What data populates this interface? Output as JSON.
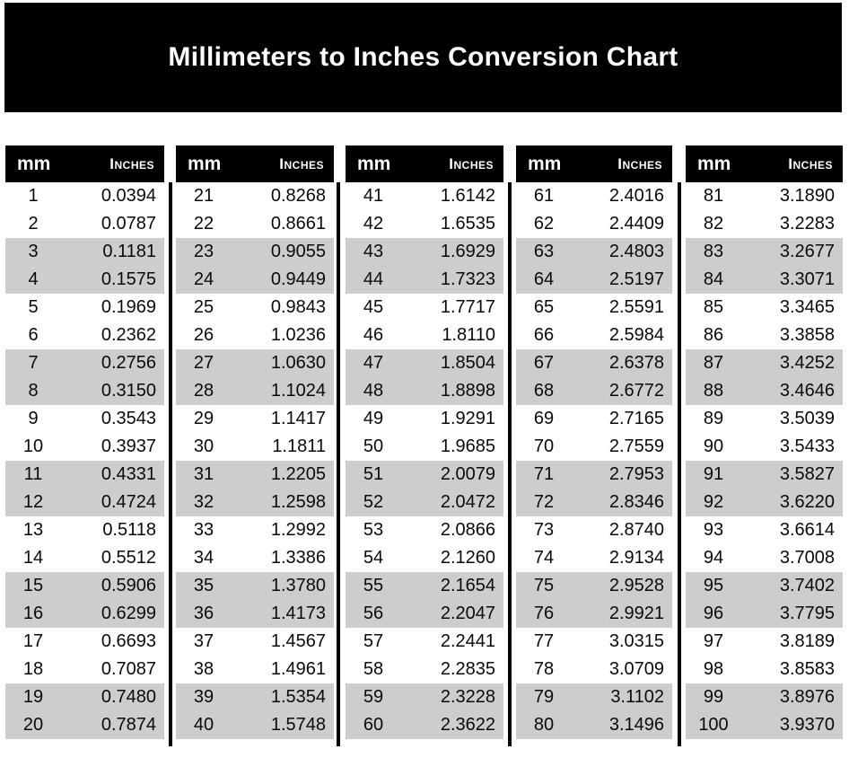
{
  "colors": {
    "banner_bg": "#000000",
    "header_bg": "#000000",
    "header_text": "#ffffff",
    "stripe": "#cdcdcd",
    "divider": "#000000",
    "text": "#0a0a0a"
  },
  "chart_data": {
    "type": "table",
    "title": "Millimeters to Inches Conversion Chart",
    "column_headers": [
      "mm",
      "Inches"
    ],
    "stripe_pattern": "rows 3-4 of every 4 shaded",
    "groups": [
      [
        [
          "1",
          "0.0394"
        ],
        [
          "2",
          "0.0787"
        ],
        [
          "3",
          "0.1181"
        ],
        [
          "4",
          "0.1575"
        ],
        [
          "5",
          "0.1969"
        ],
        [
          "6",
          "0.2362"
        ],
        [
          "7",
          "0.2756"
        ],
        [
          "8",
          "0.3150"
        ],
        [
          "9",
          "0.3543"
        ],
        [
          "10",
          "0.3937"
        ],
        [
          "11",
          "0.4331"
        ],
        [
          "12",
          "0.4724"
        ],
        [
          "13",
          "0.5118"
        ],
        [
          "14",
          "0.5512"
        ],
        [
          "15",
          "0.5906"
        ],
        [
          "16",
          "0.6299"
        ],
        [
          "17",
          "0.6693"
        ],
        [
          "18",
          "0.7087"
        ],
        [
          "19",
          "0.7480"
        ],
        [
          "20",
          "0.7874"
        ]
      ],
      [
        [
          "21",
          "0.8268"
        ],
        [
          "22",
          "0.8661"
        ],
        [
          "23",
          "0.9055"
        ],
        [
          "24",
          "0.9449"
        ],
        [
          "25",
          "0.9843"
        ],
        [
          "26",
          "1.0236"
        ],
        [
          "27",
          "1.0630"
        ],
        [
          "28",
          "1.1024"
        ],
        [
          "29",
          "1.1417"
        ],
        [
          "30",
          "1.1811"
        ],
        [
          "31",
          "1.2205"
        ],
        [
          "32",
          "1.2598"
        ],
        [
          "33",
          "1.2992"
        ],
        [
          "34",
          "1.3386"
        ],
        [
          "35",
          "1.3780"
        ],
        [
          "36",
          "1.4173"
        ],
        [
          "37",
          "1.4567"
        ],
        [
          "38",
          "1.4961"
        ],
        [
          "39",
          "1.5354"
        ],
        [
          "40",
          "1.5748"
        ]
      ],
      [
        [
          "41",
          "1.6142"
        ],
        [
          "42",
          "1.6535"
        ],
        [
          "43",
          "1.6929"
        ],
        [
          "44",
          "1.7323"
        ],
        [
          "45",
          "1.7717"
        ],
        [
          "46",
          "1.8110"
        ],
        [
          "47",
          "1.8504"
        ],
        [
          "48",
          "1.8898"
        ],
        [
          "49",
          "1.9291"
        ],
        [
          "50",
          "1.9685"
        ],
        [
          "51",
          "2.0079"
        ],
        [
          "52",
          "2.0472"
        ],
        [
          "53",
          "2.0866"
        ],
        [
          "54",
          "2.1260"
        ],
        [
          "55",
          "2.1654"
        ],
        [
          "56",
          "2.2047"
        ],
        [
          "57",
          "2.2441"
        ],
        [
          "58",
          "2.2835"
        ],
        [
          "59",
          "2.3228"
        ],
        [
          "60",
          "2.3622"
        ]
      ],
      [
        [
          "61",
          "2.4016"
        ],
        [
          "62",
          "2.4409"
        ],
        [
          "63",
          "2.4803"
        ],
        [
          "64",
          "2.5197"
        ],
        [
          "65",
          "2.5591"
        ],
        [
          "66",
          "2.5984"
        ],
        [
          "67",
          "2.6378"
        ],
        [
          "68",
          "2.6772"
        ],
        [
          "69",
          "2.7165"
        ],
        [
          "70",
          "2.7559"
        ],
        [
          "71",
          "2.7953"
        ],
        [
          "72",
          "2.8346"
        ],
        [
          "73",
          "2.8740"
        ],
        [
          "74",
          "2.9134"
        ],
        [
          "75",
          "2.9528"
        ],
        [
          "76",
          "2.9921"
        ],
        [
          "77",
          "3.0315"
        ],
        [
          "78",
          "3.0709"
        ],
        [
          "79",
          "3.1102"
        ],
        [
          "80",
          "3.1496"
        ]
      ],
      [
        [
          "81",
          "3.1890"
        ],
        [
          "82",
          "3.2283"
        ],
        [
          "83",
          "3.2677"
        ],
        [
          "84",
          "3.3071"
        ],
        [
          "85",
          "3.3465"
        ],
        [
          "86",
          "3.3858"
        ],
        [
          "87",
          "3.4252"
        ],
        [
          "88",
          "3.4646"
        ],
        [
          "89",
          "3.5039"
        ],
        [
          "90",
          "3.5433"
        ],
        [
          "91",
          "3.5827"
        ],
        [
          "92",
          "3.6220"
        ],
        [
          "93",
          "3.6614"
        ],
        [
          "94",
          "3.7008"
        ],
        [
          "95",
          "3.7402"
        ],
        [
          "96",
          "3.7795"
        ],
        [
          "97",
          "3.8189"
        ],
        [
          "98",
          "3.8583"
        ],
        [
          "99",
          "3.8976"
        ],
        [
          "100",
          "3.9370"
        ]
      ]
    ]
  }
}
